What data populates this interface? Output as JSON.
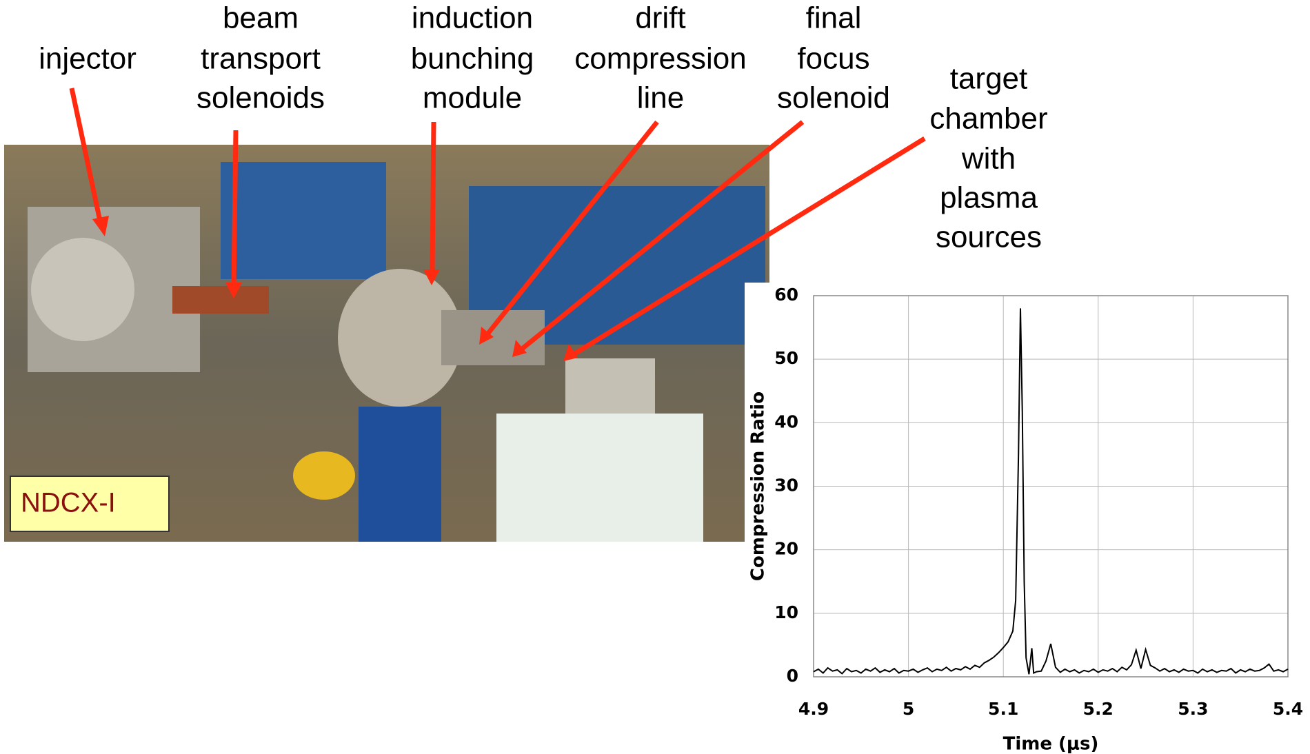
{
  "labels": [
    {
      "lines": [
        "injector"
      ]
    },
    {
      "lines": [
        "beam",
        "transport",
        "solenoids"
      ]
    },
    {
      "lines": [
        "induction",
        "bunching",
        "module"
      ]
    },
    {
      "lines": [
        "drift",
        "compression",
        "line"
      ]
    },
    {
      "lines": [
        "final",
        "focus",
        "solenoid"
      ]
    },
    {
      "lines": [
        "target",
        "chamber",
        "with",
        "plasma",
        "sources"
      ]
    }
  ],
  "photo_label": "NDCX-I",
  "chart_data": {
    "type": "line",
    "xlabel": "Time (μs)",
    "ylabel": "Compression Ratio",
    "color": "#000000",
    "xlim": [
      4.9,
      5.4
    ],
    "xticks": [
      4.9,
      5,
      5.1,
      5.2,
      5.3,
      5.4
    ],
    "ylim": [
      0,
      60
    ],
    "yticks": [
      0,
      10,
      20,
      30,
      40,
      50,
      60
    ],
    "grid": true,
    "x": [
      4.9,
      4.905,
      4.91,
      4.915,
      4.92,
      4.925,
      4.93,
      4.935,
      4.94,
      4.945,
      4.95,
      4.955,
      4.96,
      4.965,
      4.97,
      4.975,
      4.98,
      4.985,
      4.99,
      4.995,
      5.0,
      5.005,
      5.01,
      5.015,
      5.02,
      5.025,
      5.03,
      5.035,
      5.04,
      5.045,
      5.05,
      5.055,
      5.06,
      5.065,
      5.07,
      5.075,
      5.08,
      5.085,
      5.09,
      5.095,
      5.1,
      5.105,
      5.11,
      5.113,
      5.116,
      5.118,
      5.12,
      5.122,
      5.124,
      5.127,
      5.13,
      5.132,
      5.135,
      5.14,
      5.145,
      5.15,
      5.155,
      5.16,
      5.165,
      5.17,
      5.175,
      5.18,
      5.185,
      5.19,
      5.195,
      5.2,
      5.205,
      5.21,
      5.215,
      5.22,
      5.225,
      5.23,
      5.235,
      5.24,
      5.245,
      5.25,
      5.255,
      5.26,
      5.265,
      5.27,
      5.275,
      5.28,
      5.285,
      5.29,
      5.295,
      5.3,
      5.305,
      5.31,
      5.315,
      5.32,
      5.325,
      5.33,
      5.335,
      5.34,
      5.345,
      5.35,
      5.355,
      5.36,
      5.365,
      5.37,
      5.375,
      5.38,
      5.385,
      5.39,
      5.395,
      5.4
    ],
    "values": [
      0.8,
      1.2,
      0.6,
      1.4,
      0.9,
      1.1,
      0.5,
      1.3,
      0.8,
      1.0,
      0.6,
      1.2,
      0.9,
      1.4,
      0.7,
      1.1,
      0.8,
      1.3,
      0.6,
      1.0,
      0.9,
      1.2,
      0.7,
      1.1,
      1.4,
      0.8,
      1.2,
      1.0,
      1.5,
      0.9,
      1.3,
      1.1,
      1.6,
      1.2,
      1.8,
      1.5,
      2.2,
      2.6,
      3.1,
      3.8,
      4.6,
      5.5,
      7.2,
      12,
      35,
      58,
      42,
      15,
      3,
      0.4,
      4.5,
      0.6,
      0.8,
      0.9,
      2.5,
      5.2,
      1.5,
      0.7,
      1.2,
      0.8,
      1.1,
      0.6,
      1.0,
      0.8,
      1.2,
      0.7,
      1.1,
      0.9,
      1.3,
      0.8,
      1.5,
      1.1,
      1.9,
      4.2,
      1.3,
      4.3,
      1.8,
      1.4,
      0.9,
      1.3,
      0.8,
      1.1,
      0.7,
      1.2,
      0.9,
      1.0,
      0.6,
      1.2,
      0.8,
      1.1,
      0.7,
      1.0,
      0.9,
      1.3,
      0.6,
      1.1,
      0.8,
      1.2,
      0.9,
      1.0,
      1.4,
      2.0,
      0.9,
      1.1,
      0.8,
      1.2
    ]
  }
}
